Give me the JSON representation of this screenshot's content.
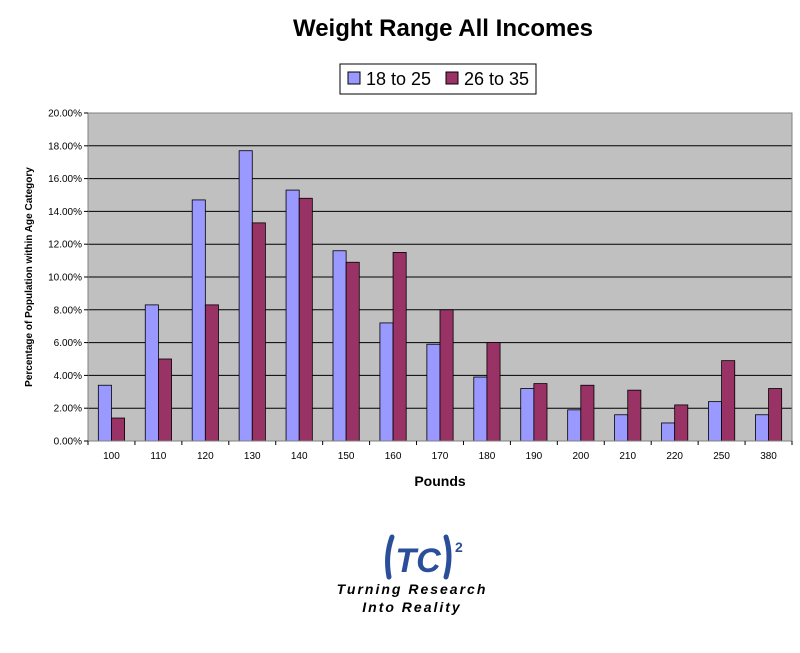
{
  "chart_data": {
    "type": "bar",
    "title": "Weight Range All Incomes",
    "xlabel": "Pounds",
    "ylabel": "Percentage of Population within Age Category",
    "categories": [
      "100",
      "110",
      "120",
      "130",
      "140",
      "150",
      "160",
      "170",
      "180",
      "190",
      "200",
      "210",
      "220",
      "250",
      "380"
    ],
    "series": [
      {
        "name": "18 to 25",
        "color": "#9999ff",
        "values": [
          3.4,
          8.3,
          14.7,
          17.7,
          15.3,
          11.6,
          7.2,
          5.9,
          3.9,
          3.2,
          1.9,
          1.6,
          1.1,
          2.4,
          1.6
        ]
      },
      {
        "name": "26 to 35",
        "color": "#993366",
        "values": [
          1.4,
          5.0,
          8.3,
          13.3,
          14.8,
          10.9,
          11.5,
          8.0,
          6.0,
          3.5,
          3.4,
          3.1,
          2.2,
          4.9,
          3.2
        ]
      }
    ],
    "ylim": [
      0,
      20
    ],
    "yticks": [
      "0.00%",
      "2.00%",
      "4.00%",
      "6.00%",
      "8.00%",
      "10.00%",
      "12.00%",
      "14.00%",
      "16.00%",
      "18.00%",
      "20.00%"
    ],
    "grid": true,
    "legend": "top-center",
    "plot_background": "#c0c0c0"
  },
  "logo": {
    "mark": "TC",
    "superscript": "2",
    "tagline_line1": "Turning Research",
    "tagline_line2": "Into Reality"
  }
}
